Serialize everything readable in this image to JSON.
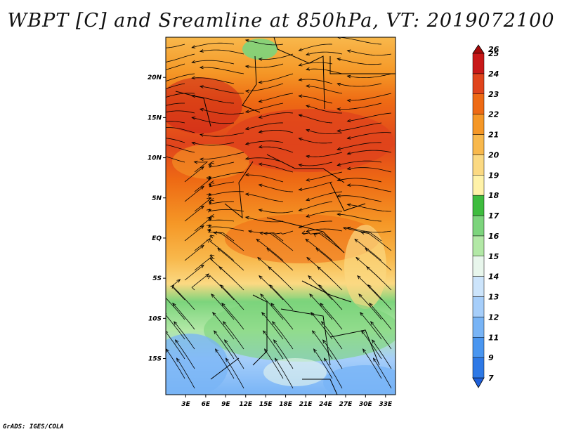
{
  "title": "WBPT [C] and Sreamline at 850hPa, VT: 2019072100",
  "credit": "GrADS: IGES/COLA",
  "map": {
    "type": "shaded contour map with streamlines",
    "x_ticks": [
      "3E",
      "6E",
      "9E",
      "12E",
      "15E",
      "18E",
      "21E",
      "24E",
      "27E",
      "30E",
      "33E"
    ],
    "y_ticks": [
      "20N",
      "15N",
      "10N",
      "5N",
      "EQ",
      "5S",
      "10S",
      "15S"
    ],
    "lon_range": [
      0,
      34.5
    ],
    "lat_range": [
      -19.5,
      25
    ]
  },
  "colorbar": {
    "labels": [
      "7",
      "9",
      "11",
      "12",
      "13",
      "14",
      "15",
      "16",
      "17",
      "18",
      "19",
      "20",
      "21",
      "22",
      "23",
      "24",
      "25",
      "26"
    ],
    "colors": [
      "#1e5fd8",
      "#2e79e6",
      "#4a96f0",
      "#78b4f6",
      "#a6cefa",
      "#cce4fb",
      "#e8f6ec",
      "#b2e8a6",
      "#7cd47c",
      "#3ebc3e",
      "#fff2a8",
      "#fbd982",
      "#f8b84c",
      "#f59726",
      "#ee6a14",
      "#e0441c",
      "#c81818",
      "#a50a0a"
    ]
  }
}
